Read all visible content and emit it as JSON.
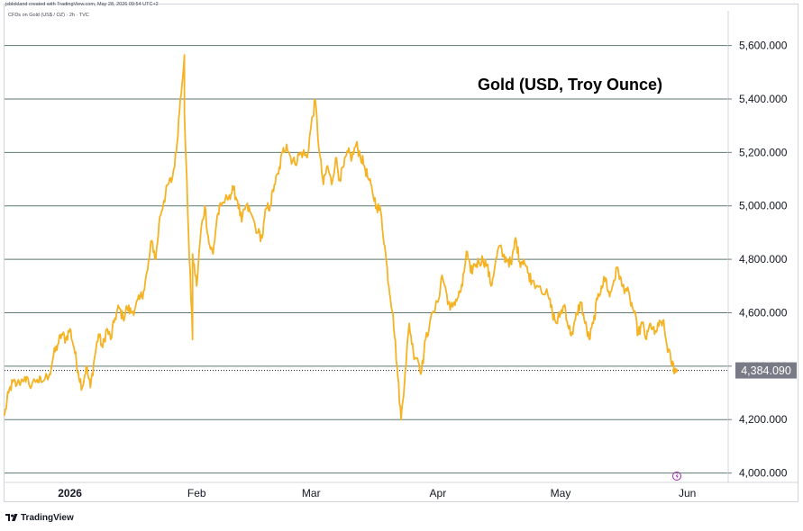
{
  "header": {
    "credit": "jsblokland created with TradingView.com, May 28, 2026 09:54 UTC+2",
    "symbol": "CFDs on Gold (US$ / OZ) · 2h · TVC"
  },
  "footer": {
    "brand": "TradingView"
  },
  "colors": {
    "line": "#f5b324",
    "grid": "#5d7a70",
    "price_tag": "#787b86",
    "text": "#131722"
  },
  "chart_data": {
    "type": "line",
    "title": "Gold (USD, Troy Ounce)",
    "y_ticks": [
      "4,000.000",
      "4,200.000",
      "4,400.000",
      "4,600.000",
      "4,800.000",
      "5,000.000",
      "5,200.000",
      "5,400.000",
      "5,600.000"
    ],
    "y_tick_values": [
      4000,
      4200,
      4400,
      4600,
      4800,
      5000,
      5200,
      5400,
      5600
    ],
    "ylim": [
      3965,
      5730
    ],
    "x_ticks": [
      "2026",
      "Feb",
      "Mar",
      "Apr",
      "May",
      "Jun"
    ],
    "x_tick_dates": [
      "2026-01-01",
      "2026-02-01",
      "2026-03-01",
      "2026-04-01",
      "2026-05-01",
      "2026-06-01"
    ],
    "xlim": [
      "2025-12-16",
      "2026-06-11"
    ],
    "last_price": {
      "label": "4,384.090",
      "value": 4384.09
    },
    "series": [
      {
        "points": [
          [
            "2025-12-16",
            4215
          ],
          [
            "2025-12-17",
            4300
          ],
          [
            "2025-12-18",
            4340
          ],
          [
            "2025-12-19",
            4330
          ],
          [
            "2025-12-21",
            4360
          ],
          [
            "2025-12-22",
            4330
          ],
          [
            "2025-12-24",
            4350
          ],
          [
            "2025-12-25",
            4340
          ],
          [
            "2025-12-27",
            4370
          ],
          [
            "2025-12-28",
            4440
          ],
          [
            "2025-12-29",
            4480
          ],
          [
            "2025-12-30",
            4520
          ],
          [
            "2025-12-31",
            4500
          ],
          [
            "2026-01-01",
            4540
          ],
          [
            "2026-01-02",
            4470
          ],
          [
            "2026-01-03",
            4380
          ],
          [
            "2026-01-04",
            4320
          ],
          [
            "2026-01-05",
            4400
          ],
          [
            "2026-01-06",
            4320
          ],
          [
            "2026-01-07",
            4430
          ],
          [
            "2026-01-08",
            4520
          ],
          [
            "2026-01-09",
            4470
          ],
          [
            "2026-01-10",
            4540
          ],
          [
            "2026-01-11",
            4500
          ],
          [
            "2026-01-12",
            4580
          ],
          [
            "2026-01-13",
            4620
          ],
          [
            "2026-01-14",
            4580
          ],
          [
            "2026-01-15",
            4620
          ],
          [
            "2026-01-16",
            4600
          ],
          [
            "2026-01-17",
            4620
          ],
          [
            "2026-01-18",
            4650
          ],
          [
            "2026-01-19",
            4680
          ],
          [
            "2026-01-20",
            4760
          ],
          [
            "2026-01-21",
            4870
          ],
          [
            "2026-01-22",
            4800
          ],
          [
            "2026-01-23",
            4960
          ],
          [
            "2026-01-24",
            5020
          ],
          [
            "2026-01-25",
            5080
          ],
          [
            "2026-01-26",
            5100
          ],
          [
            "2026-01-27",
            5200
          ],
          [
            "2026-01-28",
            5400
          ],
          [
            "2026-01-29",
            5565
          ],
          [
            "2026-01-29",
            5350
          ],
          [
            "2026-01-30",
            4900
          ],
          [
            "2026-01-31",
            4500
          ],
          [
            "2026-01-31",
            4820
          ],
          [
            "2026-02-01",
            4700
          ],
          [
            "2026-02-02",
            4900
          ],
          [
            "2026-02-03",
            5000
          ],
          [
            "2026-02-04",
            4860
          ],
          [
            "2026-02-05",
            4820
          ],
          [
            "2026-02-06",
            4960
          ],
          [
            "2026-02-07",
            5000
          ],
          [
            "2026-02-09",
            5040
          ],
          [
            "2026-02-10",
            5060
          ],
          [
            "2026-02-11",
            5020
          ],
          [
            "2026-02-12",
            4940
          ],
          [
            "2026-02-13",
            5000
          ],
          [
            "2026-02-14",
            4980
          ],
          [
            "2026-02-16",
            4900
          ],
          [
            "2026-02-17",
            4880
          ],
          [
            "2026-02-18",
            4990
          ],
          [
            "2026-02-19",
            5000
          ],
          [
            "2026-02-20",
            5080
          ],
          [
            "2026-02-21",
            5120
          ],
          [
            "2026-02-22",
            5200
          ],
          [
            "2026-02-23",
            5230
          ],
          [
            "2026-02-24",
            5180
          ],
          [
            "2026-02-25",
            5160
          ],
          [
            "2026-02-26",
            5190
          ],
          [
            "2026-02-27",
            5200
          ],
          [
            "2026-02-28",
            5180
          ],
          [
            "2026-03-01",
            5300
          ],
          [
            "2026-03-02",
            5395
          ],
          [
            "2026-03-03",
            5200
          ],
          [
            "2026-03-04",
            5080
          ],
          [
            "2026-03-05",
            5150
          ],
          [
            "2026-03-06",
            5080
          ],
          [
            "2026-03-07",
            5180
          ],
          [
            "2026-03-08",
            5100
          ],
          [
            "2026-03-09",
            5150
          ],
          [
            "2026-03-10",
            5200
          ],
          [
            "2026-03-11",
            5180
          ],
          [
            "2026-03-12",
            5230
          ],
          [
            "2026-03-13",
            5190
          ],
          [
            "2026-03-14",
            5150
          ],
          [
            "2026-03-15",
            5100
          ],
          [
            "2026-03-16",
            5050
          ],
          [
            "2026-03-17",
            5000
          ],
          [
            "2026-03-18",
            4980
          ],
          [
            "2026-03-19",
            4850
          ],
          [
            "2026-03-20",
            4700
          ],
          [
            "2026-03-21",
            4600
          ],
          [
            "2026-03-22",
            4400
          ],
          [
            "2026-03-23",
            4200
          ],
          [
            "2026-03-24",
            4380
          ],
          [
            "2026-03-25",
            4560
          ],
          [
            "2026-03-26",
            4450
          ],
          [
            "2026-03-27",
            4430
          ],
          [
            "2026-03-28",
            4380
          ],
          [
            "2026-03-29",
            4500
          ],
          [
            "2026-03-30",
            4560
          ],
          [
            "2026-04-01",
            4640
          ],
          [
            "2026-04-02",
            4740
          ],
          [
            "2026-04-03",
            4680
          ],
          [
            "2026-04-04",
            4610
          ],
          [
            "2026-04-05",
            4640
          ],
          [
            "2026-04-06",
            4660
          ],
          [
            "2026-04-07",
            4700
          ],
          [
            "2026-04-08",
            4830
          ],
          [
            "2026-04-09",
            4750
          ],
          [
            "2026-04-10",
            4780
          ],
          [
            "2026-04-11",
            4790
          ],
          [
            "2026-04-12",
            4800
          ],
          [
            "2026-04-13",
            4780
          ],
          [
            "2026-04-14",
            4700
          ],
          [
            "2026-04-15",
            4780
          ],
          [
            "2026-04-16",
            4850
          ],
          [
            "2026-04-17",
            4810
          ],
          [
            "2026-04-18",
            4800
          ],
          [
            "2026-04-19",
            4780
          ],
          [
            "2026-04-20",
            4880
          ],
          [
            "2026-04-21",
            4790
          ],
          [
            "2026-04-22",
            4800
          ],
          [
            "2026-04-23",
            4750
          ],
          [
            "2026-04-24",
            4720
          ],
          [
            "2026-04-26",
            4700
          ],
          [
            "2026-04-28",
            4660
          ],
          [
            "2026-04-29",
            4600
          ],
          [
            "2026-04-30",
            4560
          ],
          [
            "2026-05-01",
            4600
          ],
          [
            "2026-05-02",
            4630
          ],
          [
            "2026-05-03",
            4540
          ],
          [
            "2026-05-04",
            4520
          ],
          [
            "2026-05-05",
            4600
          ],
          [
            "2026-05-06",
            4640
          ],
          [
            "2026-05-07",
            4560
          ],
          [
            "2026-05-08",
            4500
          ],
          [
            "2026-05-09",
            4560
          ],
          [
            "2026-05-10",
            4650
          ],
          [
            "2026-05-11",
            4700
          ],
          [
            "2026-05-12",
            4730
          ],
          [
            "2026-05-13",
            4660
          ],
          [
            "2026-05-14",
            4720
          ],
          [
            "2026-05-15",
            4770
          ],
          [
            "2026-05-16",
            4700
          ],
          [
            "2026-05-17",
            4690
          ],
          [
            "2026-05-18",
            4650
          ],
          [
            "2026-05-19",
            4600
          ],
          [
            "2026-05-20",
            4520
          ],
          [
            "2026-05-21",
            4560
          ],
          [
            "2026-05-22",
            4500
          ],
          [
            "2026-05-23",
            4560
          ],
          [
            "2026-05-24",
            4520
          ],
          [
            "2026-05-25",
            4550
          ],
          [
            "2026-05-26",
            4570
          ],
          [
            "2026-05-27",
            4480
          ],
          [
            "2026-05-28",
            4420
          ],
          [
            "2026-05-29",
            4384.09
          ]
        ]
      }
    ]
  }
}
